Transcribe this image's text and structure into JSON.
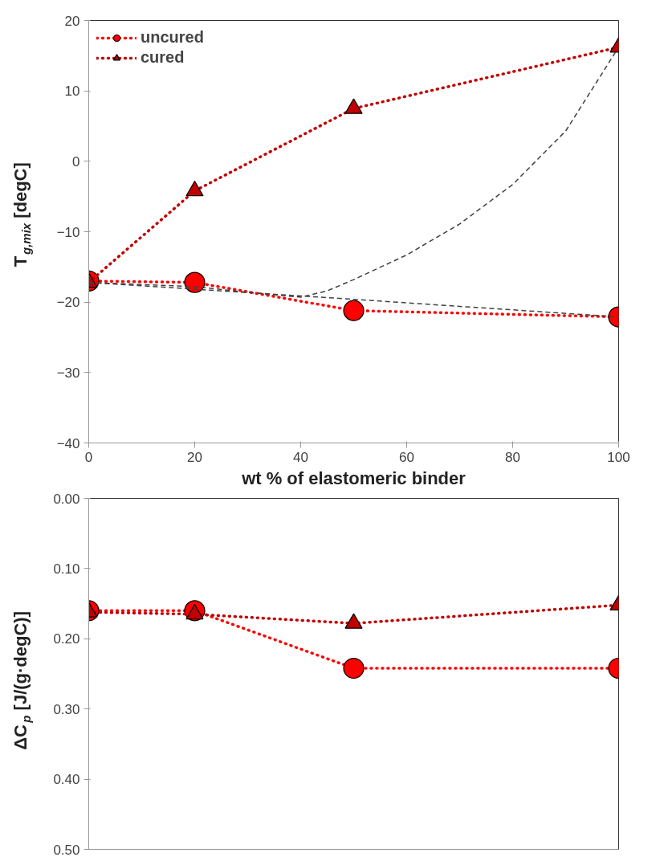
{
  "chart_data": [
    {
      "type": "line",
      "xlabel": "wt % of elastomeric binder",
      "ylabel": "T$_{g,mix}$ [degC]",
      "xlim": [
        0,
        100
      ],
      "ylim": [
        -40,
        20
      ],
      "xticks": [
        0,
        20,
        40,
        60,
        80,
        100
      ],
      "yticks": [
        -40,
        -30,
        -20,
        -10,
        0,
        10,
        20
      ],
      "grid": false,
      "legend": "top left",
      "line_style": "dotted",
      "series": [
        {
          "name": "uncured",
          "color": "#ff0000",
          "marker": "circle",
          "x": [
            0,
            20,
            50,
            100
          ],
          "values": [
            -17,
            -17.2,
            -21.2,
            -22.1
          ]
        },
        {
          "name": "cured",
          "color": "#c00000",
          "marker": "triangle",
          "x": [
            0,
            20,
            50,
            100
          ],
          "values": [
            -17.2,
            -4.2,
            7.5,
            16.2
          ]
        },
        {
          "type": "line",
          "color": "#404040",
          "marker": "none",
          "line_style": "dashed",
          "x": [
            0,
            50,
            100
          ],
          "values": [
            -17.2,
            -19.6,
            -22.1
          ]
        },
        {
          "type": "line",
          "color": "#404040",
          "marker": "none",
          "line_style": "dashed",
          "x": [
            0,
            20,
            30,
            40,
            45,
            50,
            60,
            70,
            80,
            90,
            100
          ],
          "values": [
            -17.2,
            -17.8,
            -18.6,
            -19.3,
            -18.4,
            -16.8,
            -13.3,
            -8.9,
            -3.3,
            4.3,
            16.2
          ]
        }
      ]
    },
    {
      "type": "line",
      "ylabel": "ΔC$_{p}$ [J/(g·degC)]",
      "xlim": [
        0,
        100
      ],
      "ylim": [
        0.5,
        0.0
      ],
      "xticks": [
        0,
        20,
        40,
        60,
        80,
        100
      ],
      "yticks": [
        {
          "value": 0.0,
          "label": "0.00"
        },
        {
          "value": 0.1,
          "label": "0.10"
        },
        {
          "value": 0.2,
          "label": "0.20"
        },
        {
          "value": 0.3,
          "label": "0.30"
        },
        {
          "value": 0.4,
          "label": "0.40"
        },
        {
          "value": 0.5,
          "label": "0.50"
        }
      ],
      "tick_labels": "y",
      "grid": false,
      "line_style": "dotted",
      "series": [
        {
          "color": "#ff0000",
          "marker": "circle",
          "x": [
            0,
            20,
            50,
            100
          ],
          "values": [
            0.16,
            0.16,
            0.242,
            0.242
          ]
        },
        {
          "color": "#c00000",
          "marker": "triangle",
          "x": [
            0,
            20,
            50,
            100
          ],
          "values": [
            0.162,
            0.165,
            0.178,
            0.152
          ]
        }
      ]
    }
  ]
}
